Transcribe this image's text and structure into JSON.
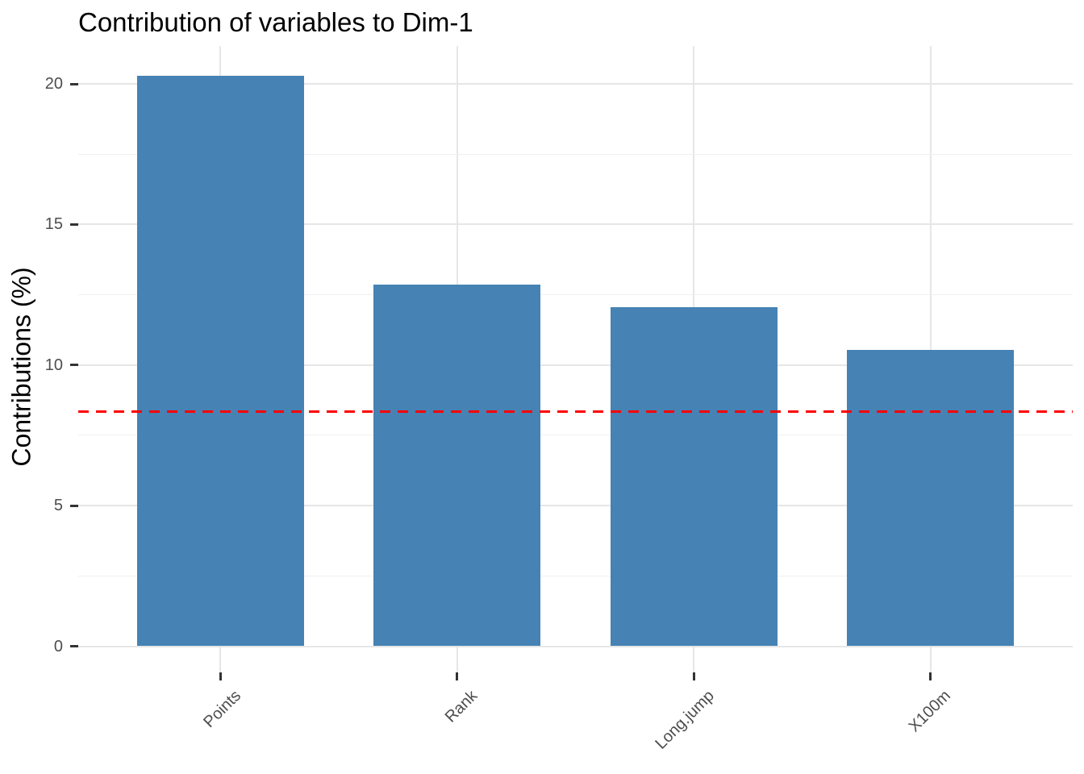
{
  "chart_data": {
    "type": "bar",
    "title": "Contribution of variables to Dim-1",
    "ylabel": "Contributions (%)",
    "xlabel": "",
    "categories": [
      "Points",
      "Rank",
      "Long.jump",
      "X100m"
    ],
    "values": [
      20.3,
      12.85,
      12.05,
      10.55
    ],
    "yticks": [
      0,
      5,
      10,
      15,
      20
    ],
    "yticks_minor": [
      2.5,
      7.5,
      12.5,
      17.5
    ],
    "ylim": [
      0,
      21.35
    ],
    "reference_line": {
      "value": 8.33,
      "style": "dashed",
      "color": "#FF0000"
    },
    "bar_color": "#4682B4",
    "grid": "major+minor horizontal, major vertical at category centers",
    "grid_major_color": "#E6E6E6",
    "grid_minor_color": "#F0F0F0",
    "tick_label_color": "#4D4D4D",
    "axis_tick_color": "#333333",
    "legend": "none",
    "background": "#FFFFFF"
  }
}
